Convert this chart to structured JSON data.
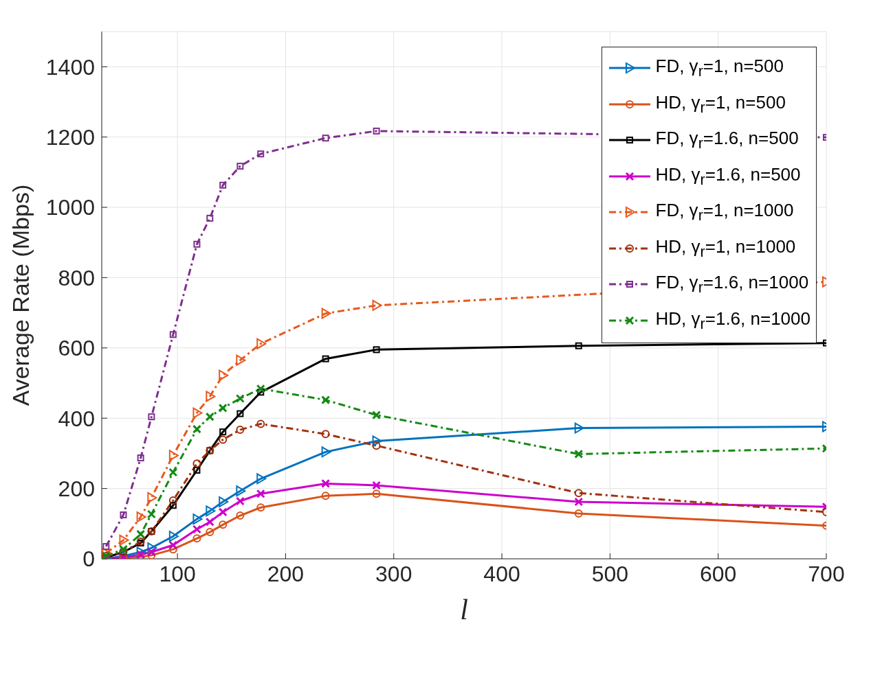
{
  "chart_data": {
    "type": "line",
    "xlabel": "l",
    "ylabel": "Average Rate (Mbps)",
    "x": [
      34,
      50,
      66,
      76,
      96,
      118,
      130,
      142,
      158,
      177,
      237,
      284,
      471,
      700
    ],
    "xlim": [
      30,
      700
    ],
    "xticks": [
      100,
      200,
      300,
      400,
      500,
      600,
      700
    ],
    "ylim": [
      0,
      1500
    ],
    "yticks": [
      0,
      200,
      400,
      600,
      800,
      1000,
      1200,
      1400
    ],
    "grid": true,
    "legend": "top right",
    "series": [
      {
        "name": "FD, γ$_{r}$=1, n=500",
        "color": "#0072bd",
        "marker": "triangle",
        "line_style": "solid",
        "values": [
          0,
          8,
          19,
          31,
          64,
          113,
          136,
          162,
          193,
          228,
          304,
          335,
          372,
          376
        ]
      },
      {
        "name": "HD, γ$_{r}$=1, n=500",
        "color": "#d95319",
        "marker": "circle",
        "line_style": "solid",
        "values": [
          0,
          2,
          6,
          10,
          27,
          58,
          76,
          97,
          123,
          146,
          179,
          185,
          129,
          94
        ]
      },
      {
        "name": "FD, γ$_{r}$=1.6, n=500",
        "color": "#000000",
        "marker": "square",
        "line_style": "solid",
        "values": [
          4,
          19,
          45,
          78,
          152,
          252,
          308,
          361,
          413,
          474,
          569,
          595,
          606,
          614
        ]
      },
      {
        "name": "HD, γ$_{r}$=1.6, n=500",
        "color": "#cc00cc",
        "marker": "cross",
        "line_style": "solid",
        "values": [
          2,
          4,
          12,
          19,
          39,
          84,
          105,
          133,
          164,
          185,
          214,
          209,
          162,
          148
        ]
      },
      {
        "name": "FD, γ$_{r}$=1, n=1000",
        "color": "#e8581c",
        "marker": "triangle",
        "line_style": "dashed",
        "values": [
          16,
          53,
          119,
          174,
          294,
          415,
          462,
          522,
          565,
          612,
          698,
          721,
          null,
          788
        ]
      },
      {
        "name": "HD, γ$_{r}$=1, n=1000",
        "color": "#a2310c",
        "marker": "circle",
        "line_style": "dashed",
        "values": [
          8,
          19,
          49,
          78,
          166,
          271,
          308,
          339,
          367,
          384,
          355,
          322,
          187,
          133
        ]
      },
      {
        "name": "FD, γ$_{r}$=1.6, n=1000",
        "color": "#7e2f8e",
        "marker": "square",
        "line_style": "dashed",
        "values": [
          35,
          125,
          287,
          404,
          638,
          895,
          969,
          1063,
          1117,
          1152,
          1197,
          1217,
          null,
          1199
        ]
      },
      {
        "name": "HD, γ$_{r}$=1.6, n=1000",
        "color": "#138a13",
        "marker": "cross",
        "line_style": "dashed",
        "values": [
          8,
          27,
          70,
          127,
          246,
          369,
          404,
          429,
          456,
          484,
          452,
          409,
          298,
          314
        ]
      }
    ]
  }
}
